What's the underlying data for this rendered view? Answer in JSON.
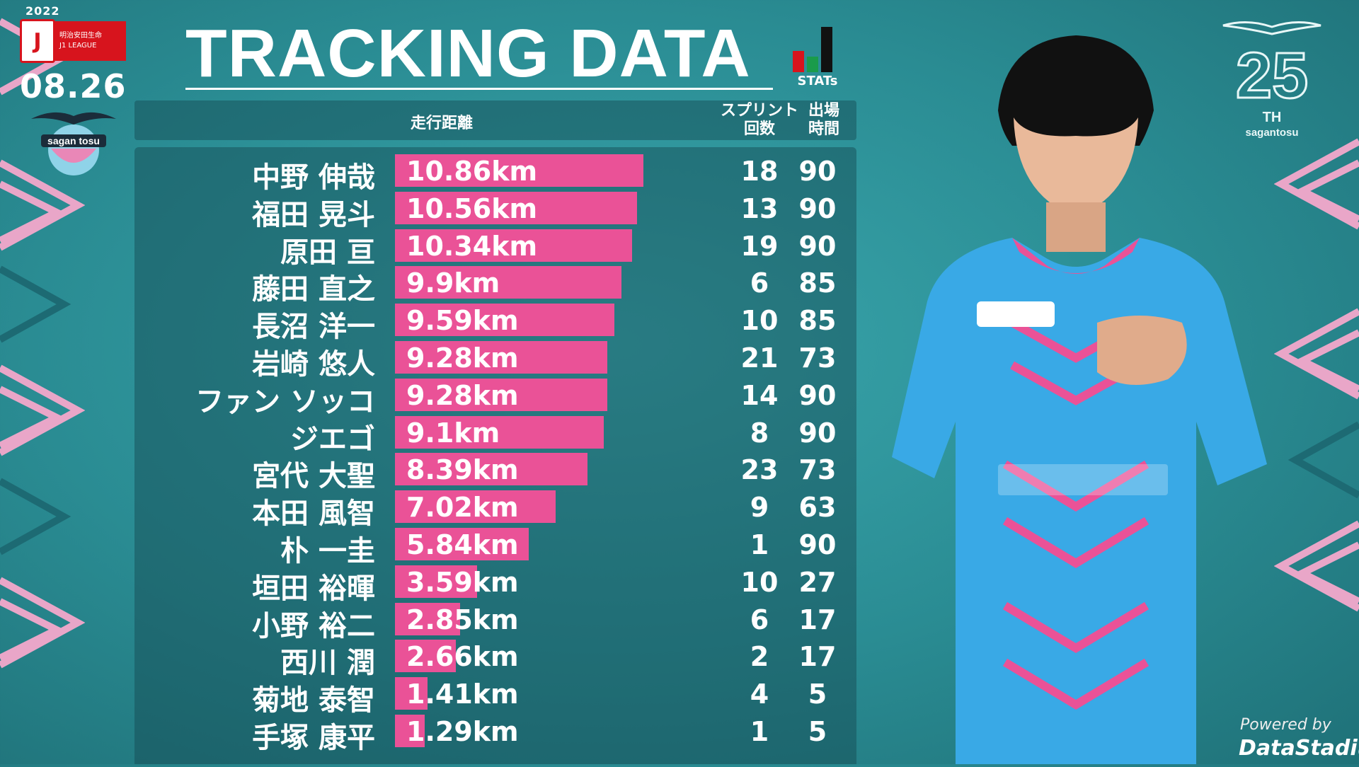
{
  "league": {
    "year": "2022",
    "mark": "J",
    "sponsor": "明治安田生命",
    "name": "J1 LEAGUE",
    "date": "08.26"
  },
  "club": {
    "name": "sagan tosu"
  },
  "title": "TRACKING DATA",
  "stats_logo": {
    "label": "STATs",
    "colors": [
      "#d7141d",
      "#1a9b4b",
      "#111111"
    ]
  },
  "anniversary": {
    "number": "25",
    "suffix": "TH",
    "club": "sagantosu"
  },
  "columns": {
    "distance": "走行距離",
    "sprint_line1": "スプリント",
    "sprint_line2": "回数",
    "minutes_line1": "出場",
    "minutes_line2": "時間"
  },
  "powered_by": "Powered by",
  "provider": "DataStadium",
  "colors": {
    "bar": "#ea5297",
    "background": "#2a8c93"
  },
  "chart_data": {
    "type": "bar",
    "orientation": "horizontal",
    "title": "TRACKING DATA",
    "unit": "km",
    "categories": [
      "中野 伸哉",
      "福田 晃斗",
      "原田 亘",
      "藤田 直之",
      "長沼 洋一",
      "岩崎 悠人",
      "ファン ソッコ",
      "ジエゴ",
      "宮代 大聖",
      "本田 風智",
      "朴 一圭",
      "垣田 裕暉",
      "小野 裕二",
      "西川 潤",
      "菊地 泰智",
      "手塚 康平"
    ],
    "values": [
      10.86,
      10.56,
      10.34,
      9.9,
      9.59,
      9.28,
      9.28,
      9.1,
      8.39,
      7.02,
      5.84,
      3.59,
      2.85,
      2.66,
      1.41,
      1.29
    ],
    "labels": [
      "10.86km",
      "10.56km",
      "10.34km",
      "9.9km",
      "9.59km",
      "9.28km",
      "9.28km",
      "9.1km",
      "8.39km",
      "7.02km",
      "5.84km",
      "3.59km",
      "2.85km",
      "2.66km",
      "1.41km",
      "1.29km"
    ],
    "sprints": [
      "18",
      "13",
      "19",
      "6",
      "10",
      "21",
      "14",
      "8",
      "23",
      "9",
      "1",
      "10",
      "6",
      "2",
      "4",
      "1"
    ],
    "minutes": [
      "90",
      "90",
      "90",
      "85",
      "85",
      "73",
      "90",
      "90",
      "73",
      "63",
      "90",
      "27",
      "17",
      "17",
      "5",
      "5"
    ],
    "xlim": [
      0,
      11
    ]
  }
}
